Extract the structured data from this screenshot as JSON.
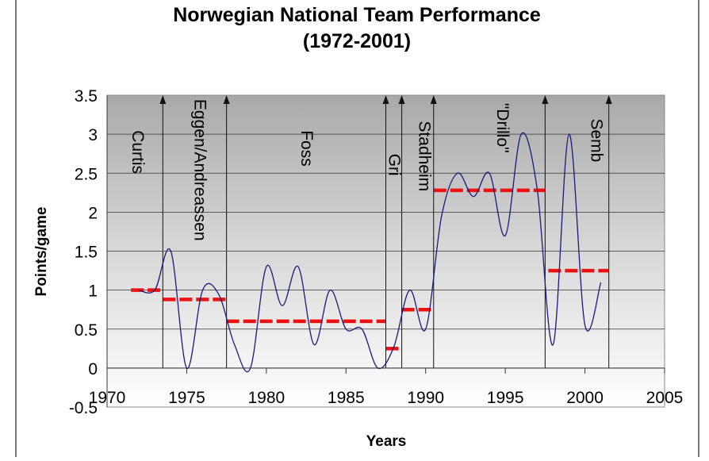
{
  "chart_data": {
    "type": "line",
    "title": [
      "Norwegian National Team Performance",
      "(1972-2001)"
    ],
    "xlabel": "Years",
    "ylabel": "Points/game",
    "xlim": [
      1970,
      2005
    ],
    "ylim": [
      -0.5,
      3.5
    ],
    "x_ticks": [
      1970,
      1975,
      1980,
      1985,
      1990,
      1995,
      2000,
      2005
    ],
    "y_ticks": [
      -0.5,
      0,
      0.5,
      1,
      1.5,
      2,
      2.5,
      3,
      3.5
    ],
    "grid": true,
    "series": [
      {
        "color": "#1a1a7a",
        "smoothed": true,
        "x": [
          1972,
          1973,
          1974,
          1975,
          1976,
          1977,
          1978,
          1979,
          1980,
          1981,
          1982,
          1983,
          1984,
          1985,
          1986,
          1987,
          1988,
          1989,
          1990,
          1991,
          1992,
          1993,
          1994,
          1995,
          1996,
          1997,
          1998,
          1999,
          2000,
          2001
        ],
        "y": [
          1.0,
          1.0,
          1.5,
          0.0,
          1.0,
          0.95,
          0.3,
          0.0,
          1.3,
          0.8,
          1.3,
          0.3,
          1.0,
          0.5,
          0.5,
          0.0,
          0.27,
          1.0,
          0.5,
          1.95,
          2.5,
          2.2,
          2.5,
          1.7,
          3.0,
          2.3,
          0.3,
          3.0,
          0.55,
          1.1
        ]
      }
    ],
    "coach_averages": {
      "color": "#ee1111",
      "segments": [
        {
          "from": 1971.5,
          "to": 1973.5,
          "value": 1.0
        },
        {
          "from": 1973.5,
          "to": 1977.5,
          "value": 0.88
        },
        {
          "from": 1977.5,
          "to": 1987.5,
          "value": 0.6
        },
        {
          "from": 1987.5,
          "to": 1988.3,
          "value": 0.25
        },
        {
          "from": 1988.5,
          "to": 1990.5,
          "value": 0.75
        },
        {
          "from": 1990.5,
          "to": 1997.5,
          "value": 2.28
        },
        {
          "from": 1997.7,
          "to": 2001.5,
          "value": 1.25
        }
      ]
    },
    "coach_changes": [
      1973.5,
      1977.5,
      1987.5,
      1988.5,
      1990.5,
      1997.5,
      2001.5
    ],
    "annotations": [
      {
        "text": "Curtis",
        "x": 1971.6,
        "y": 3.05
      },
      {
        "text": "Eggen/Andreassen",
        "x": 1975.5,
        "y": 3.45
      },
      {
        "text": "Foss",
        "x": 1982.2,
        "y": 3.05
      },
      {
        "text": "Gri",
        "x": 1987.7,
        "y": 2.75
      },
      {
        "text": "Stadheim",
        "x": 1989.6,
        "y": 3.17
      },
      {
        "text": "\"Drillo\"",
        "x": 1994.5,
        "y": 3.4
      },
      {
        "text": "Semb",
        "x": 2000.4,
        "y": 3.2
      }
    ]
  }
}
